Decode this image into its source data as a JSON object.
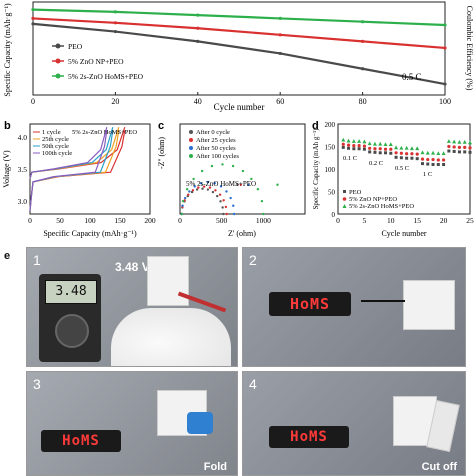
{
  "chart_data": [
    {
      "panel": "a",
      "type": "line",
      "xlabel": "Cycle number",
      "ylabel": "Specific Capacity (mAh·g⁻¹)",
      "ylabel_right": "Coulombic Efficiency (%)",
      "xlim": [
        0,
        100
      ],
      "xticks": [
        "0",
        "20",
        "40",
        "60",
        "80",
        "100"
      ],
      "rate_label": "0.5 C",
      "series": [
        {
          "name": "PEO",
          "color": "#4a4a4a",
          "x": [
            0,
            20,
            40,
            60,
            80,
            100
          ],
          "y": [
            145,
            138,
            129,
            118,
            104,
            90
          ]
        },
        {
          "name": "5% ZnO NP+PEO",
          "color": "#d93030",
          "x": [
            0,
            20,
            40,
            60,
            80,
            100
          ],
          "y": [
            150,
            146,
            141,
            135,
            129,
            123
          ]
        },
        {
          "name": "5% 2s-ZnO HoMS+PEO",
          "color": "#2db04b",
          "x": [
            0,
            20,
            40,
            60,
            80,
            100
          ],
          "y": [
            158,
            156,
            153,
            150,
            147,
            144
          ]
        }
      ]
    },
    {
      "panel": "b",
      "type": "line",
      "xlabel": "Specific Capacity (mAh·g⁻¹)",
      "ylabel": "Voltage (V)",
      "xlim": [
        0,
        200
      ],
      "ylim": [
        2.8,
        4.2
      ],
      "xticks": [
        "0",
        "50",
        "100",
        "150",
        "200"
      ],
      "yticks": [
        "3.0",
        "3.5",
        "4.0"
      ],
      "annotation": "5% 2s-ZnO HoMS+PEO",
      "series": [
        {
          "name": "1 cycle",
          "color": "#d93030",
          "capacity": 158
        },
        {
          "name": "25th cycle",
          "color": "#f0a020",
          "capacity": 148
        },
        {
          "name": "50th cycle",
          "color": "#2aa0c8",
          "capacity": 138
        },
        {
          "name": "100th cycle",
          "color": "#8a5cc0",
          "capacity": 128
        }
      ]
    },
    {
      "panel": "c",
      "type": "line",
      "xlabel": "Z' (ohm)",
      "ylabel": "-Z'' (ohm)",
      "xlim": [
        0,
        1500
      ],
      "xticks": [
        "0",
        "500",
        "1000"
      ],
      "annotation": "5% 2s-ZnO HoMS+PEO",
      "series": [
        {
          "name": "After 0 cycle",
          "color": "#555555",
          "x": [
            20,
            520
          ],
          "y": [
            0,
            0
          ]
        },
        {
          "name": "After 25 cycles",
          "color": "#d93030",
          "x": [
            20,
            560
          ],
          "y": [
            0,
            0
          ]
        },
        {
          "name": "After 50 cycles",
          "color": "#2a6fd0",
          "x": [
            20,
            650
          ],
          "y": [
            0,
            0
          ]
        },
        {
          "name": "After 100 cycles",
          "color": "#2db04b",
          "x": [
            20,
            1000
          ],
          "y": [
            0,
            0
          ]
        }
      ]
    },
    {
      "panel": "d",
      "type": "line",
      "xlabel": "Cycle number",
      "ylabel": "Specific Capacity (mAh g⁻¹)",
      "xlim": [
        0,
        25
      ],
      "ylim": [
        0,
        200
      ],
      "xticks": [
        "0",
        "5",
        "10",
        "15",
        "20",
        "25"
      ],
      "yticks": [
        "0",
        "50",
        "100",
        "150",
        "200"
      ],
      "rate_labels": [
        "0.1 C",
        "0.2 C",
        "0.5 C",
        "1 C"
      ],
      "series": [
        {
          "name": "PEO",
          "color": "#4a4a4a",
          "y": [
            148,
            146,
            145,
            145,
            144,
            138,
            137,
            136,
            136,
            135,
            126,
            125,
            124,
            124,
            123,
            112,
            111,
            110,
            110,
            110,
            140,
            139,
            138,
            138,
            137
          ]
        },
        {
          "name": "5% ZnO NP+PEO",
          "color": "#d93030",
          "y": [
            155,
            153,
            152,
            152,
            151,
            146,
            145,
            145,
            144,
            144,
            136,
            135,
            134,
            134,
            133,
            122,
            121,
            121,
            120,
            120,
            150,
            149,
            148,
            148,
            147
          ]
        },
        {
          "name": "5% 2s-ZnO HoMS+PEO",
          "color": "#2db04b",
          "y": [
            165,
            163,
            162,
            162,
            161,
            157,
            156,
            156,
            155,
            155,
            148,
            147,
            147,
            146,
            146,
            137,
            136,
            136,
            135,
            135,
            162,
            161,
            160,
            160,
            159
          ]
        }
      ]
    }
  ],
  "panels": {
    "a": "a",
    "b": "b",
    "c": "c",
    "d": "d",
    "e": "e"
  },
  "photos": [
    {
      "num": "1",
      "label": "3.48 V",
      "display": "3.48"
    },
    {
      "num": "2",
      "sign": "HoMS"
    },
    {
      "num": "3",
      "sign": "HoMS",
      "caption": "Fold"
    },
    {
      "num": "4",
      "sign": "HoMS",
      "caption": "Cut off"
    }
  ]
}
